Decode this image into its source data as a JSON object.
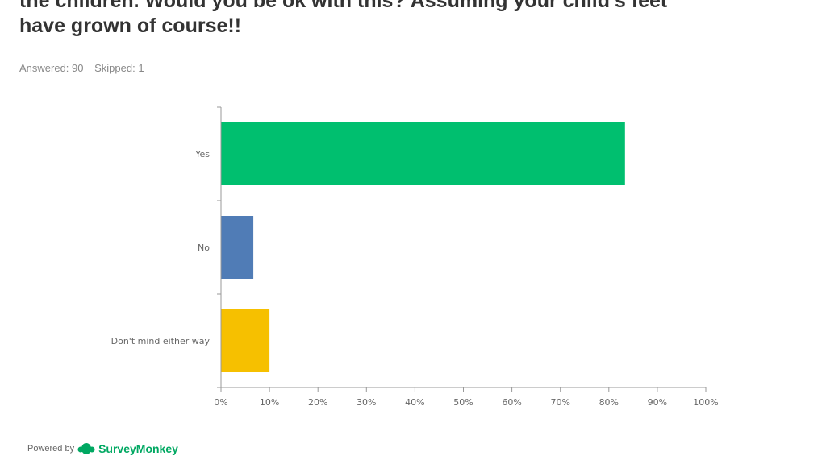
{
  "question": {
    "lines": [
      "the children.  Would you be ok with this?  Assuming your child's feet",
      "have grown of course!!"
    ],
    "answered_label": "Answered: 90",
    "skipped_label": "Skipped: 1"
  },
  "chart_data": {
    "type": "bar",
    "orientation": "horizontal",
    "categories": [
      "Yes",
      "No",
      "Don't mind either way"
    ],
    "values": [
      83.33,
      6.67,
      10.0
    ],
    "colors": [
      "#00bf6f",
      "#507cb6",
      "#f6c000"
    ],
    "xlim": [
      0,
      100
    ],
    "x_ticks": [
      "0%",
      "10%",
      "20%",
      "30%",
      "40%",
      "50%",
      "60%",
      "70%",
      "80%",
      "90%",
      "100%"
    ],
    "grid": false
  },
  "footer": {
    "powered_by": "Powered by",
    "brand": "SurveyMonkey",
    "logo_icon": "surveymonkey-logo-icon"
  }
}
